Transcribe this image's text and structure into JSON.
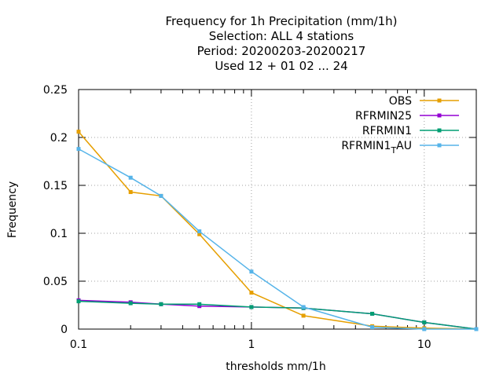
{
  "chart_data": {
    "type": "line",
    "title_lines": [
      "Frequency  for 1h Precipitation (mm/1h)",
      "Selection: ALL      4 stations",
      "Period: 20200203-20200217",
      "Used  12 + 01 02 ... 24"
    ],
    "xlabel": "thresholds mm/1h",
    "ylabel": "Frequency",
    "x_scale": "log",
    "xlim": [
      0.1,
      20
    ],
    "ylim": [
      0,
      0.25
    ],
    "x_ticks": [
      {
        "value": 0.1,
        "label": "0.1"
      },
      {
        "value": 1,
        "label": "1"
      },
      {
        "value": 10,
        "label": "10"
      }
    ],
    "y_ticks": [
      {
        "value": 0,
        "label": "0"
      },
      {
        "value": 0.05,
        "label": "0.05"
      },
      {
        "value": 0.1,
        "label": "0.1"
      },
      {
        "value": 0.15,
        "label": "0.15"
      },
      {
        "value": 0.2,
        "label": "0.2"
      },
      {
        "value": 0.25,
        "label": "0.25"
      }
    ],
    "grid": true,
    "legend_position": "top-right",
    "x": [
      0.1,
      0.2,
      0.3,
      0.5,
      1,
      2,
      5,
      10,
      20
    ],
    "series": [
      {
        "name": "OBS",
        "color": "#e69f00",
        "values": [
          0.206,
          0.143,
          0.139,
          0.099,
          0.038,
          0.014,
          0.003,
          0.001,
          0.0
        ]
      },
      {
        "name": "RFRMIN25",
        "color": "#9400d3",
        "values": [
          0.03,
          0.028,
          0.026,
          0.024,
          0.023,
          0.022,
          0.016,
          0.007,
          0.0
        ]
      },
      {
        "name": "RFRMIN1",
        "color": "#009e73",
        "values": [
          0.029,
          0.027,
          0.026,
          0.026,
          0.023,
          0.022,
          0.016,
          0.007,
          0.0
        ]
      },
      {
        "name": "RFRMIN1",
        "name_subscript": "T",
        "name_suffix": "AU",
        "color": "#56b4e9",
        "values": [
          0.188,
          0.158,
          0.139,
          0.102,
          0.06,
          0.023,
          0.002,
          0.0,
          0.0
        ]
      }
    ]
  }
}
